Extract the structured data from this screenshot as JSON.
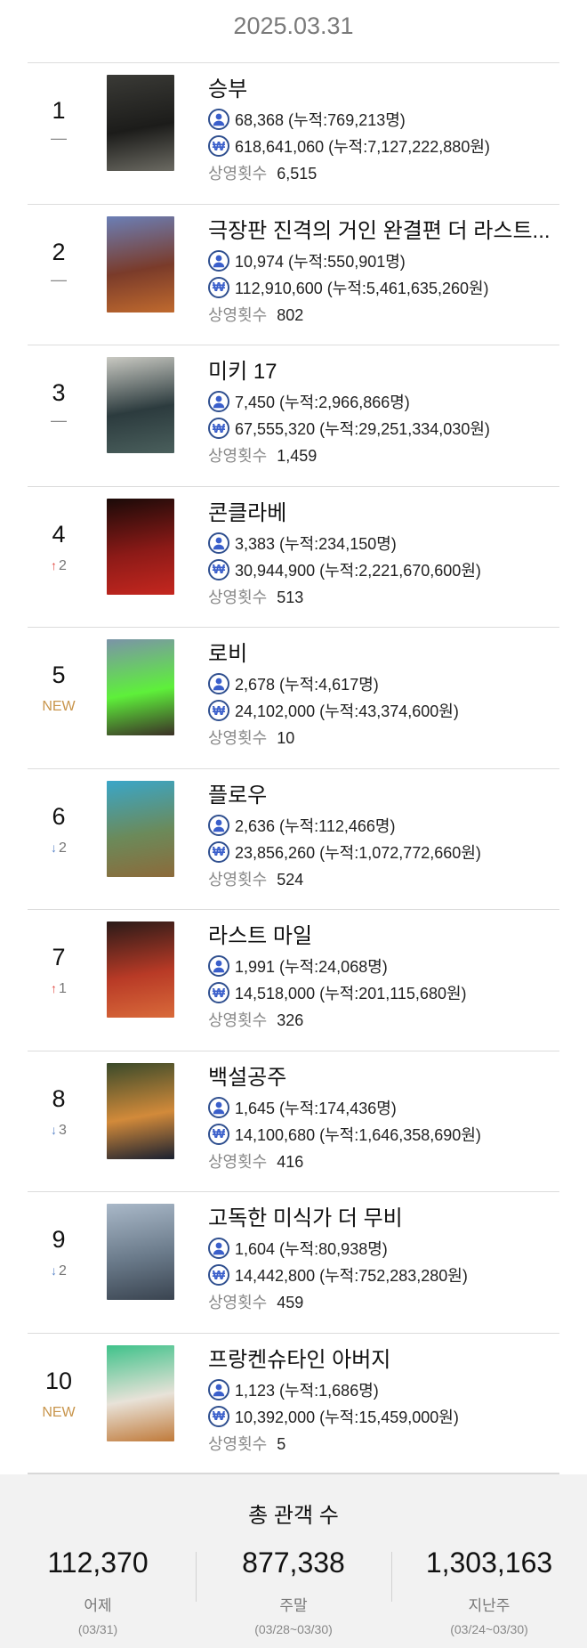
{
  "header": {
    "date": "2025.03.31"
  },
  "labels": {
    "screenings": "상영횟수",
    "cumulative_prefix": "누적:",
    "audience_unit": "명",
    "revenue_unit": "원"
  },
  "movies": [
    {
      "rank": "1",
      "change_type": "same",
      "change_text": "—",
      "title": "승부",
      "audience_line": "68,368 (누적:769,213명)",
      "revenue_line": "618,641,060 (누적:7,127,222,880원)",
      "screenings": "6,515",
      "poster_colors": [
        "#3a3a36",
        "#1c1c1a",
        "#6b6a62"
      ]
    },
    {
      "rank": "2",
      "change_type": "same",
      "change_text": "—",
      "title": "극장판 진격의 거인 완결편 더 라스트...",
      "audience_line": "10,974 (누적:550,901명)",
      "revenue_line": "112,910,600 (누적:5,461,635,260원)",
      "screenings": "802",
      "poster_colors": [
        "#6b7fb6",
        "#7a3b2a",
        "#c06a2e"
      ]
    },
    {
      "rank": "3",
      "change_type": "same",
      "change_text": "—",
      "title": "미키 17",
      "audience_line": "7,450 (누적:2,966,866명)",
      "revenue_line": "67,555,320 (누적:29,251,334,030원)",
      "screenings": "1,459",
      "poster_colors": [
        "#c9c9c2",
        "#2c3b3e",
        "#4a5f5c"
      ]
    },
    {
      "rank": "4",
      "change_type": "up",
      "change_text": "2",
      "title": "콘클라베",
      "audience_line": "3,383 (누적:234,150명)",
      "revenue_line": "30,944,900 (누적:2,221,670,600원)",
      "screenings": "513",
      "poster_colors": [
        "#1a0a08",
        "#8c1a17",
        "#c5271f"
      ]
    },
    {
      "rank": "5",
      "change_type": "new",
      "change_text": "NEW",
      "title": "로비",
      "audience_line": "2,678 (누적:4,617명)",
      "revenue_line": "24,102,000 (누적:43,374,600원)",
      "screenings": "10",
      "poster_colors": [
        "#7b93a8",
        "#5ef03a",
        "#3b3026"
      ]
    },
    {
      "rank": "6",
      "change_type": "down",
      "change_text": "2",
      "title": "플로우",
      "audience_line": "2,636 (누적:112,466명)",
      "revenue_line": "23,856,260 (누적:1,072,772,660원)",
      "screenings": "524",
      "poster_colors": [
        "#3aa6c8",
        "#6b8a5a",
        "#8c6a3a"
      ]
    },
    {
      "rank": "7",
      "change_type": "up",
      "change_text": "1",
      "title": "라스트 마일",
      "audience_line": "1,991 (누적:24,068명)",
      "revenue_line": "14,518,000 (누적:201,115,680원)",
      "screenings": "326",
      "poster_colors": [
        "#2a1a18",
        "#b83a26",
        "#d96a3a"
      ]
    },
    {
      "rank": "8",
      "change_type": "down",
      "change_text": "3",
      "title": "백설공주",
      "audience_line": "1,645 (누적:174,436명)",
      "revenue_line": "14,100,680 (누적:1,646,358,690원)",
      "screenings": "416",
      "poster_colors": [
        "#3a4a2a",
        "#d28a3a",
        "#1a2030"
      ]
    },
    {
      "rank": "9",
      "change_type": "down",
      "change_text": "2",
      "title": "고독한 미식가 더 무비",
      "audience_line": "1,604 (누적:80,938명)",
      "revenue_line": "14,442,800 (누적:752,283,280원)",
      "screenings": "459",
      "poster_colors": [
        "#a9b8c8",
        "#6a7a8a",
        "#3a4450"
      ]
    },
    {
      "rank": "10",
      "change_type": "new",
      "change_text": "NEW",
      "title": "프랑켄슈타인 아버지",
      "audience_line": "1,123 (누적:1,686명)",
      "revenue_line": "10,392,000 (누적:15,459,000원)",
      "screenings": "5",
      "poster_colors": [
        "#3fc28a",
        "#e8e2d8",
        "#c07a3a"
      ]
    }
  ],
  "summary": {
    "title": "총 관객 수",
    "columns": [
      {
        "value": "112,370",
        "label": "어제",
        "range": "(03/31)"
      },
      {
        "value": "877,338",
        "label": "주말",
        "range": "(03/28~03/30)"
      },
      {
        "value": "1,303,163",
        "label": "지난주",
        "range": "(03/24~03/30)"
      }
    ]
  },
  "colors": {
    "up": "#e0463e",
    "down": "#5b86c8",
    "new": "#c8954c",
    "icon_fill": "#3a5fcb",
    "icon_border": "#2f4f8f",
    "summary_bg": "#f2f2f2"
  }
}
